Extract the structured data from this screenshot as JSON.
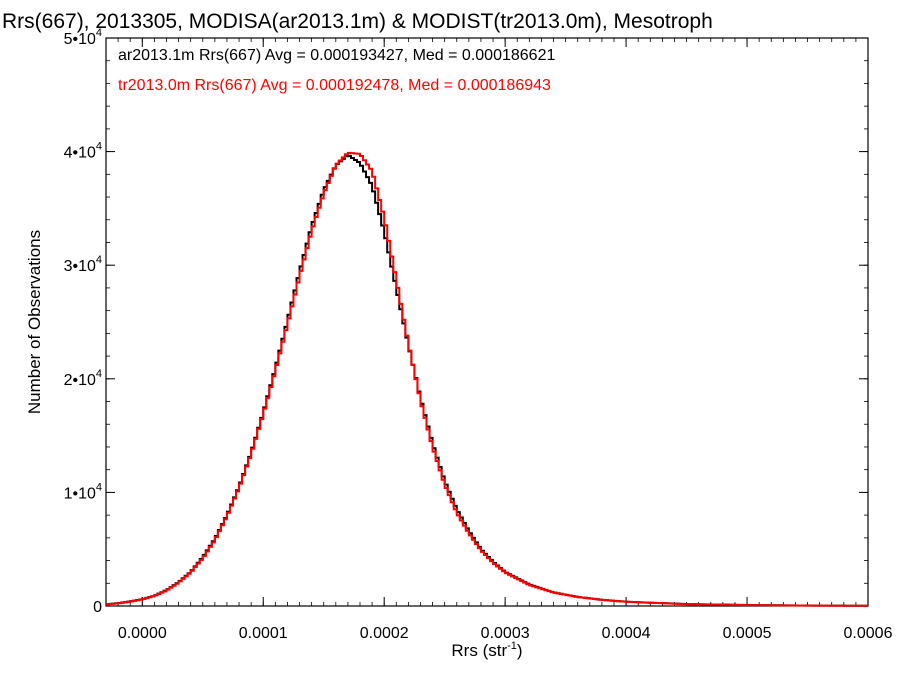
{
  "chart_data": {
    "type": "line",
    "title": "Rrs(667), 2013305, MODISA(ar2013.1m) & MODIST(tr2013.0m), Mesotroph",
    "xlabel": "Rrs (str",
    "xlabel_sup": "-1",
    "xlabel_suffix": ")",
    "ylabel": "Number of Observations",
    "xlim": [
      -3e-05,
      0.0006
    ],
    "ylim": [
      0,
      50000
    ],
    "x_ticks": [
      {
        "value": 0.0,
        "label": "0.0000"
      },
      {
        "value": 0.0001,
        "label": "0.0001"
      },
      {
        "value": 0.0002,
        "label": "0.0002"
      },
      {
        "value": 0.0003,
        "label": "0.0003"
      },
      {
        "value": 0.0004,
        "label": "0.0004"
      },
      {
        "value": 0.0005,
        "label": "0.0005"
      },
      {
        "value": 0.0006,
        "label": "0.0006"
      }
    ],
    "y_ticks": [
      {
        "value": 0,
        "mant": "0",
        "exp": ""
      },
      {
        "value": 10000,
        "mant": "1•10",
        "exp": "4"
      },
      {
        "value": 20000,
        "mant": "2•10",
        "exp": "4"
      },
      {
        "value": 30000,
        "mant": "3•10",
        "exp": "4"
      },
      {
        "value": 40000,
        "mant": "4•10",
        "exp": "4"
      },
      {
        "value": 50000,
        "mant": "5•10",
        "exp": "4"
      }
    ],
    "grid": false,
    "legend_position": "top-left",
    "annotations": [
      {
        "text": "ar2013.1m Rrs(667) Avg = 0.000193427, Med = 0.000186621",
        "color": "#000000"
      },
      {
        "text": "tr2013.0m Rrs(667) Avg = 0.000192478, Med = 0.000186943",
        "color": "#ff0000"
      }
    ],
    "series": [
      {
        "color": "#000000",
        "x": [
          -3e-05,
          -2e-05,
          -1e-05,
          0.0,
          1e-05,
          2e-05,
          3e-05,
          4e-05,
          5e-05,
          6e-05,
          7e-05,
          8e-05,
          9e-05,
          0.0001,
          0.00011,
          0.00012,
          0.00013,
          0.00014,
          0.00015,
          0.00016,
          0.00017,
          0.00018,
          0.00019,
          0.0002,
          0.00021,
          0.00022,
          0.00023,
          0.00024,
          0.00025,
          0.00026,
          0.00027,
          0.00028,
          0.00029,
          0.0003,
          0.00032,
          0.00034,
          0.00036,
          0.00038,
          0.0004,
          0.00045,
          0.0005,
          0.00055,
          0.0006
        ],
        "y": [
          150,
          250,
          400,
          600,
          900,
          1400,
          2100,
          3000,
          4300,
          5900,
          8000,
          10500,
          13500,
          17000,
          20900,
          25100,
          29400,
          33400,
          36600,
          38800,
          39700,
          39000,
          37000,
          33000,
          28000,
          23000,
          18300,
          14300,
          11000,
          8500,
          6600,
          5000,
          3900,
          3000,
          1900,
          1200,
          800,
          550,
          380,
          170,
          90,
          40,
          20
        ]
      },
      {
        "color": "#ff0000",
        "x": [
          -3e-05,
          -2e-05,
          -1e-05,
          0.0,
          1e-05,
          2e-05,
          3e-05,
          4e-05,
          5e-05,
          6e-05,
          7e-05,
          8e-05,
          9e-05,
          0.0001,
          0.00011,
          0.00012,
          0.00013,
          0.00014,
          0.00015,
          0.00016,
          0.00017,
          0.00018,
          0.00019,
          0.0002,
          0.00021,
          0.00022,
          0.00023,
          0.00024,
          0.00025,
          0.00026,
          0.00027,
          0.00028,
          0.00029,
          0.0003,
          0.00032,
          0.00034,
          0.00036,
          0.00038,
          0.0004,
          0.00045,
          0.0005,
          0.00055,
          0.0006
        ],
        "y": [
          140,
          230,
          380,
          580,
          880,
          1350,
          2050,
          2950,
          4200,
          5800,
          7900,
          10400,
          13400,
          16900,
          20700,
          24800,
          29000,
          33000,
          36300,
          38800,
          39900,
          39800,
          38300,
          34200,
          28700,
          23100,
          18100,
          14000,
          10700,
          8200,
          6400,
          4900,
          3800,
          2950,
          1850,
          1180,
          790,
          540,
          370,
          160,
          80,
          35,
          15
        ]
      }
    ]
  }
}
